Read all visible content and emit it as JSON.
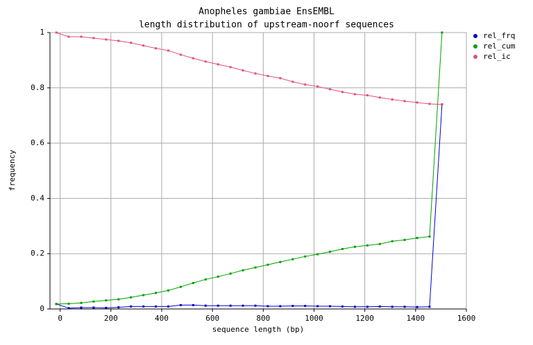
{
  "chart_data": {
    "type": "line",
    "title": "Anopheles gambiae EnsEMBL",
    "subtitle": "length distribution of upstream-noorf sequences",
    "x_label": "sequence length (bp)",
    "y_label": "frequency",
    "x": [
      -15,
      34,
      83,
      132,
      181,
      230,
      279,
      328,
      377,
      426,
      475,
      524,
      573,
      622,
      671,
      720,
      769,
      818,
      867,
      916,
      965,
      1014,
      1063,
      1112,
      1161,
      1210,
      1259,
      1308,
      1357,
      1406,
      1455,
      1504
    ],
    "series": [
      {
        "name": "rel_frq",
        "color": "#0000cc",
        "values": [
          0.018,
          0.003,
          0.005,
          0.005,
          0.004,
          0.006,
          0.009,
          0.009,
          0.009,
          0.009,
          0.014,
          0.014,
          0.012,
          0.012,
          0.012,
          0.012,
          0.012,
          0.01,
          0.01,
          0.011,
          0.011,
          0.01,
          0.01,
          0.009,
          0.008,
          0.008,
          0.009,
          0.008,
          0.008,
          0.007,
          0.008,
          0.74
        ]
      },
      {
        "name": "rel_cum",
        "color": "#00a000",
        "values": [
          0.018,
          0.019,
          0.022,
          0.027,
          0.031,
          0.035,
          0.042,
          0.05,
          0.058,
          0.067,
          0.08,
          0.094,
          0.107,
          0.117,
          0.128,
          0.14,
          0.15,
          0.16,
          0.17,
          0.18,
          0.19,
          0.198,
          0.207,
          0.217,
          0.225,
          0.23,
          0.235,
          0.245,
          0.25,
          0.257,
          0.262,
          1.0
        ]
      },
      {
        "name": "rel_ic",
        "color": "#e0507a",
        "values": [
          1.0,
          0.985,
          0.985,
          0.98,
          0.975,
          0.97,
          0.963,
          0.953,
          0.943,
          0.935,
          0.92,
          0.907,
          0.895,
          0.885,
          0.875,
          0.863,
          0.852,
          0.843,
          0.835,
          0.822,
          0.812,
          0.805,
          0.795,
          0.785,
          0.777,
          0.773,
          0.765,
          0.758,
          0.752,
          0.747,
          0.742,
          0.74
        ]
      }
    ],
    "xlim": [
      -40,
      1600
    ],
    "ylim": [
      0,
      1
    ],
    "xticks": [
      0,
      200,
      400,
      600,
      800,
      1000,
      1200,
      1400,
      1600
    ],
    "yticks": [
      0,
      0.2,
      0.4,
      0.6,
      0.8,
      1
    ],
    "grid": true,
    "legend": "right"
  }
}
